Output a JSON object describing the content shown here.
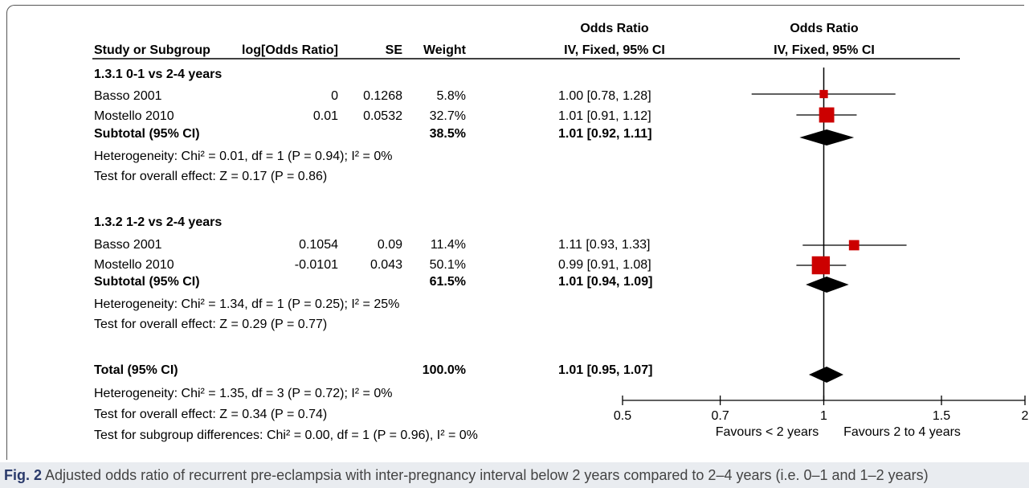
{
  "header": {
    "col_study": "Study or Subgroup",
    "col_logor": "log[Odds Ratio]",
    "col_se": "SE",
    "col_weight": "Weight",
    "col_or_top": "Odds Ratio",
    "col_or_bottom": "IV, Fixed, 95% CI",
    "plot_top": "Odds Ratio",
    "plot_bottom": "IV, Fixed, 95% CI"
  },
  "groups": [
    {
      "title": "1.3.1 0-1 vs 2-4 years",
      "studies": [
        {
          "name": "Basso 2001",
          "logor": "0",
          "se": "0.1268",
          "weight": "5.8%",
          "ci": "1.00 [0.78, 1.28]"
        },
        {
          "name": "Mostello 2010",
          "logor": "0.01",
          "se": "0.0532",
          "weight": "32.7%",
          "ci": "1.01 [0.91, 1.12]"
        }
      ],
      "subtotal": {
        "label": "Subtotal (95% CI)",
        "weight": "38.5%",
        "ci": "1.01 [0.92, 1.11]"
      },
      "heterogeneity": "Heterogeneity: Chi² = 0.01, df = 1 (P = 0.94); I² = 0%",
      "overall": "Test for overall effect: Z = 0.17 (P = 0.86)"
    },
    {
      "title": "1.3.2 1-2 vs 2-4 years",
      "studies": [
        {
          "name": "Basso 2001",
          "logor": "0.1054",
          "se": "0.09",
          "weight": "11.4%",
          "ci": "1.11 [0.93, 1.33]"
        },
        {
          "name": "Mostello 2010",
          "logor": "-0.0101",
          "se": "0.043",
          "weight": "50.1%",
          "ci": "0.99 [0.91, 1.08]"
        }
      ],
      "subtotal": {
        "label": "Subtotal (95% CI)",
        "weight": "61.5%",
        "ci": "1.01 [0.94, 1.09]"
      },
      "heterogeneity": "Heterogeneity: Chi² = 1.34, df = 1 (P = 0.25); I² = 25%",
      "overall": "Test for overall effect: Z = 0.29 (P = 0.77)"
    }
  ],
  "total": {
    "label": "Total (95% CI)",
    "weight": "100.0%",
    "ci": "1.01 [0.95, 1.07]",
    "heterogeneity": "Heterogeneity: Chi² = 1.35, df = 3 (P = 0.72); I² = 0%",
    "overall": "Test for overall effect: Z = 0.34 (P = 0.74)",
    "subgroup": "Test for subgroup differences: Chi² = 0.00, df = 1 (P = 0.96), I² = 0%"
  },
  "caption": {
    "label": "Fig. 2",
    "text": " Adjusted odds ratio of recurrent pre-eclampsia with inter-pregnancy interval below 2 years compared to 2–4 years (i.e. 0–1 and 1–2 years)"
  },
  "colors": {
    "marker": "#cc0000",
    "diamond": "#000000",
    "line": "#000000"
  },
  "chart_data": {
    "type": "forest",
    "x_scale": "log",
    "xlim": [
      0.5,
      2
    ],
    "null_line": 1,
    "ticks": [
      0.5,
      0.7,
      1,
      1.5,
      2
    ],
    "tick_labels": [
      "0.5",
      "0.7",
      "1",
      "1.5",
      "2"
    ],
    "favours_left": "Favours < 2 years",
    "favours_right": "Favours 2 to 4 years",
    "studies": [
      {
        "study": "Basso 2001",
        "group": "1.3.1 0-1 vs 2-4 years",
        "or": 1.0,
        "lower": 0.78,
        "upper": 1.28,
        "weight": 5.8
      },
      {
        "study": "Mostello 2010",
        "group": "1.3.1 0-1 vs 2-4 years",
        "or": 1.01,
        "lower": 0.91,
        "upper": 1.12,
        "weight": 32.7
      },
      {
        "study": "Basso 2001",
        "group": "1.3.2 1-2 vs 2-4 years",
        "or": 1.11,
        "lower": 0.93,
        "upper": 1.33,
        "weight": 11.4
      },
      {
        "study": "Mostello 2010",
        "group": "1.3.2 1-2 vs 2-4 years",
        "or": 0.99,
        "lower": 0.91,
        "upper": 1.08,
        "weight": 50.1
      }
    ],
    "summaries": [
      {
        "label": "Subtotal (95% CI)",
        "group": "1.3.1 0-1 vs 2-4 years",
        "or": 1.01,
        "lower": 0.92,
        "upper": 1.11
      },
      {
        "label": "Subtotal (95% CI)",
        "group": "1.3.2 1-2 vs 2-4 years",
        "or": 1.01,
        "lower": 0.94,
        "upper": 1.09
      },
      {
        "label": "Total (95% CI)",
        "group": "all",
        "or": 1.01,
        "lower": 0.95,
        "upper": 1.07
      }
    ]
  }
}
